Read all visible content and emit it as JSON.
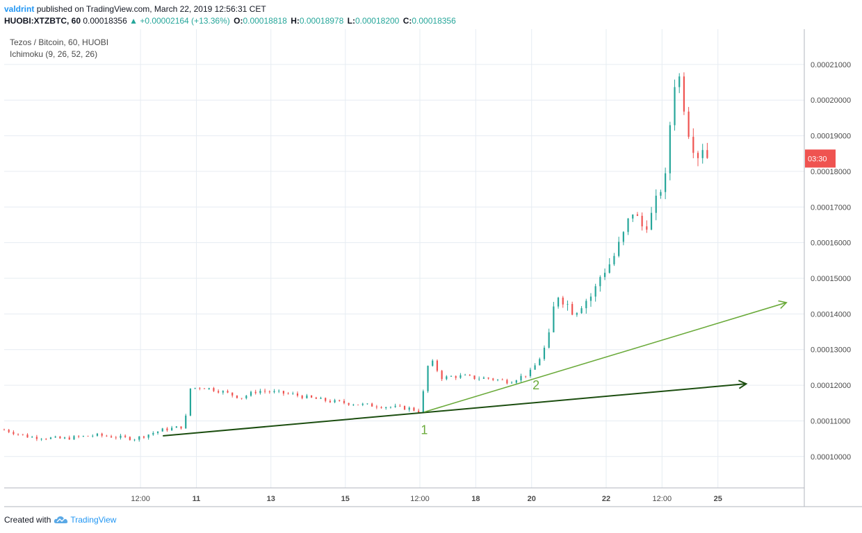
{
  "header": {
    "author": "valdrint",
    "published": "published on TradingView.com, March 22, 2019 12:56:31 CET",
    "symbol": "HUOBI:XTZBTC, 60",
    "price": "0.00018356",
    "change": "▲ +0.00002164 (+13.36%)",
    "o_label": "O:",
    "o_value": "0.00018818",
    "h_label": "H:",
    "h_value": "0.00018978",
    "l_label": "L:",
    "l_value": "0.00018200",
    "c_label": "C:",
    "c_value": "0.00018356"
  },
  "legend": {
    "line1": "Tezos / Bitcoin, 60, HUOBI",
    "line2": "Ichimoku (9, 26, 52, 26)"
  },
  "footer": {
    "created": "Created with",
    "brand": "TradingView"
  },
  "colors": {
    "up": "#26a69a",
    "down": "#ef5350",
    "grid": "#e6ecf2",
    "trend_dark": "#1b4d0f",
    "trend_light": "#6aaa3a",
    "annotation": "#6aaa3a"
  },
  "chart_data": {
    "type": "candlestick",
    "x_tick_labels": [
      "12:00",
      "11",
      "13",
      "15",
      "12:00",
      "18",
      "20",
      "22",
      "12:00",
      "25"
    ],
    "y_tick_labels": [
      "0.00010000",
      "0.00011000",
      "0.00012000",
      "0.00013000",
      "0.00014000",
      "0.00015000",
      "0.00016000",
      "0.00017000",
      "0.00018000",
      "0.00019000",
      "0.00020000",
      "0.00021000"
    ],
    "y_ticks": [
      0.0001,
      0.00011,
      0.00012,
      0.00013,
      0.00014,
      0.00015,
      0.00016,
      0.00017,
      0.00018,
      0.00019,
      0.0002,
      0.00021
    ],
    "ylim": [
      9.12e-05,
      0.0002199
    ],
    "xlim_days": [
      -1.72,
      5.44
    ],
    "x_tick_days": [
      -0.5,
      0,
      0.667,
      1.333,
      2,
      2.5,
      3,
      3.667,
      4.1667,
      4.667
    ],
    "price_tag": "03:30",
    "price_tag_value": 0.0001836,
    "close_path": [
      [
        -1.72,
        0.0001075
      ],
      [
        -1.5,
        0.0001055
      ],
      [
        -1.2,
        0.000105
      ],
      [
        -0.9,
        0.000106
      ],
      [
        -0.55,
        0.000105
      ],
      [
        -0.3,
        0.0001075
      ],
      [
        -0.1,
        0.0001085
      ],
      [
        -0.08,
        0.000119
      ],
      [
        0.05,
        0.0001195
      ],
      [
        0.2,
        0.0001185
      ],
      [
        0.4,
        0.0001165
      ],
      [
        0.55,
        0.0001185
      ],
      [
        0.7,
        0.000118
      ],
      [
        0.85,
        0.0001175
      ],
      [
        1.0,
        0.0001165
      ],
      [
        1.2,
        0.0001155
      ],
      [
        1.5,
        0.0001145
      ],
      [
        1.7,
        0.000114
      ],
      [
        1.9,
        0.0001135
      ],
      [
        2.02,
        0.0001125
      ],
      [
        2.04,
        0.0001235
      ],
      [
        2.1,
        0.000127
      ],
      [
        2.2,
        0.000122
      ],
      [
        2.3,
        0.0001225
      ],
      [
        2.4,
        0.0001225
      ],
      [
        2.5,
        0.000122
      ],
      [
        2.6,
        0.000122
      ],
      [
        2.8,
        0.000121
      ],
      [
        2.95,
        0.000123
      ],
      [
        3.0,
        0.000124
      ],
      [
        3.08,
        0.000128
      ],
      [
        3.15,
        0.0001325
      ],
      [
        3.22,
        0.000146
      ],
      [
        3.3,
        0.0001435
      ],
      [
        3.38,
        0.0001405
      ],
      [
        3.45,
        0.000143
      ],
      [
        3.55,
        0.0001455
      ],
      [
        3.62,
        0.000151
      ],
      [
        3.72,
        0.000155
      ],
      [
        3.82,
        0.000162
      ],
      [
        3.9,
        0.000169
      ],
      [
        4.0,
        0.000164
      ],
      [
        4.08,
        0.000168
      ],
      [
        4.15,
        0.000175
      ],
      [
        4.2,
        0.000178
      ],
      [
        4.25,
        0.000198
      ],
      [
        4.3,
        0.00021
      ],
      [
        4.32,
        0.0002065
      ],
      [
        4.4,
        0.000192
      ],
      [
        4.48,
        0.000184
      ],
      [
        4.52,
        0.0001878
      ],
      [
        4.58,
        0.0001836
      ]
    ],
    "trendlines": [
      {
        "name": "dark",
        "from": [
          -0.3,
          0.0001058
        ],
        "to": [
          4.92,
          0.0001204
        ]
      },
      {
        "name": "light",
        "from": [
          2.04,
          0.0001125
        ],
        "to": [
          5.28,
          0.0001432
        ]
      }
    ],
    "annotations": [
      {
        "text": "1",
        "at": [
          2.04,
          0.0001063
        ]
      },
      {
        "text": "2",
        "at": [
          3.04,
          0.0001188
        ]
      }
    ]
  }
}
